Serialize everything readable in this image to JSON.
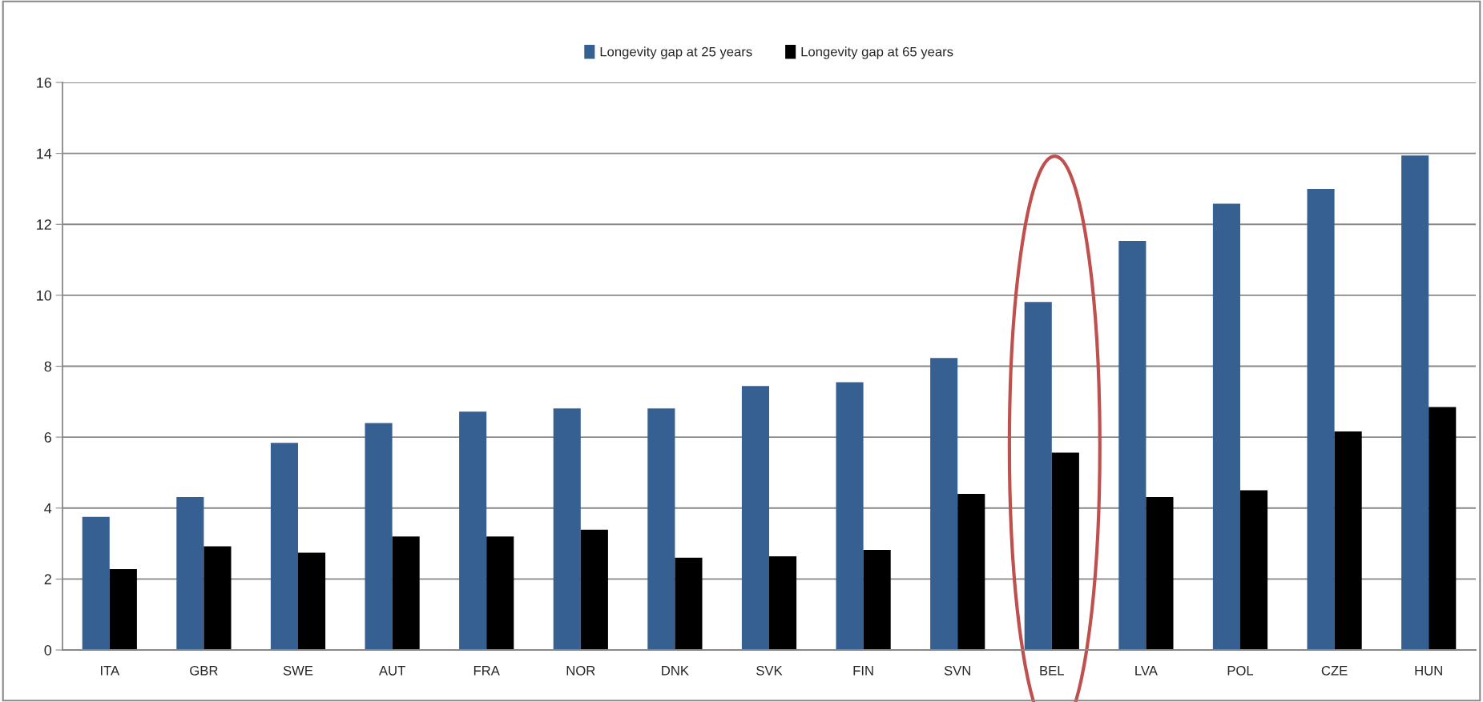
{
  "chart_data": {
    "type": "bar",
    "categories": [
      "ITA",
      "GBR",
      "SWE",
      "AUT",
      "FRA",
      "NOR",
      "DNK",
      "SVK",
      "FIN",
      "SVN",
      "BEL",
      "LVA",
      "POL",
      "CZE",
      "HUN"
    ],
    "series": [
      {
        "name": "Longevity gap at 25 years",
        "color": "#366092",
        "values": [
          3.75,
          4.31,
          5.84,
          6.4,
          6.72,
          6.81,
          6.81,
          7.44,
          7.55,
          8.23,
          9.81,
          11.53,
          12.58,
          13.0,
          13.94
        ]
      },
      {
        "name": "Longevity gap at 65 years",
        "color": "#000000",
        "values": [
          2.28,
          2.92,
          2.74,
          3.2,
          3.2,
          3.39,
          2.6,
          2.64,
          2.82,
          4.4,
          5.56,
          4.31,
          4.5,
          6.16,
          6.85
        ]
      }
    ],
    "ylim": [
      0,
      16
    ],
    "yticks": [
      0,
      2,
      4,
      6,
      8,
      10,
      12,
      14,
      16
    ],
    "grid": "y",
    "legend": "top"
  }
}
